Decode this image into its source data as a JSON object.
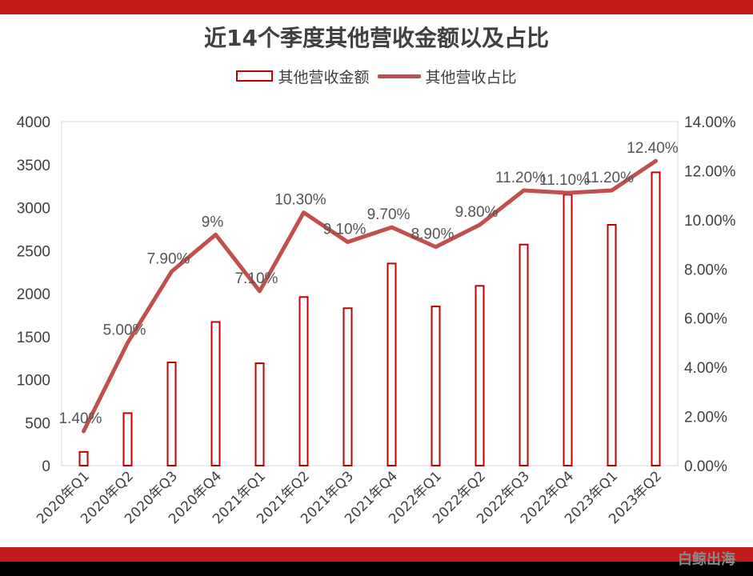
{
  "colors": {
    "bar_stroke": "#c00000",
    "line": "#c0504d",
    "frame": "#c41a1a",
    "text": "#404040",
    "label": "#555555"
  },
  "watermark": "白鲸出海",
  "chart_data": {
    "type": "bar",
    "title": "近14个季度其他营收金额以及占比",
    "categories": [
      "2020年Q1",
      "2020年Q2",
      "2020年Q3",
      "2020年Q4",
      "2021年Q1",
      "2021年Q2",
      "2021年Q3",
      "2021年Q4",
      "2022年Q1",
      "2022年Q2",
      "2022年Q3",
      "2022年Q4",
      "2023年Q1",
      "2023年Q2"
    ],
    "series": [
      {
        "name": "其他营收金额",
        "type": "bar",
        "axis": "left",
        "values": [
          160,
          610,
          1200,
          1670,
          1190,
          1960,
          1830,
          2350,
          1850,
          2090,
          2570,
          3150,
          2800,
          3410
        ]
      },
      {
        "name": "其他营收占比",
        "type": "line",
        "axis": "right",
        "values": [
          1.4,
          5.0,
          7.9,
          9.4,
          7.1,
          10.3,
          9.1,
          9.7,
          8.9,
          9.8,
          11.2,
          11.1,
          11.2,
          12.4
        ],
        "labels": [
          "1.40%",
          "5.00%",
          "7.90%",
          "9%",
          "7.10%",
          "10.30%",
          "9.10%",
          "9.70%",
          "8.90%",
          "9.80%",
          "11.20%",
          "11.10%",
          "11.20%",
          "12.40%"
        ]
      }
    ],
    "y_left": {
      "range": [
        0,
        4000
      ],
      "ticks": [
        0,
        500,
        1000,
        1500,
        2000,
        2500,
        3000,
        3500,
        4000
      ],
      "tick_labels": [
        "0",
        "500",
        "1000",
        "1500",
        "2000",
        "2500",
        "3000",
        "3500",
        "4000"
      ]
    },
    "y_right": {
      "range": [
        0,
        14
      ],
      "ticks": [
        0,
        2,
        4,
        6,
        8,
        10,
        12,
        14
      ],
      "tick_labels": [
        "0.00%",
        "2.00%",
        "4.00%",
        "6.00%",
        "8.00%",
        "10.00%",
        "12.00%",
        "14.00%"
      ]
    },
    "grid": false,
    "legend_position": "top"
  }
}
